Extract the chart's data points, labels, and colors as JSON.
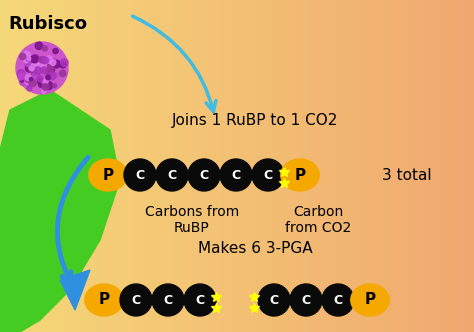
{
  "bg_color_left": "#f5d878",
  "bg_color_right": "#f0a870",
  "title": "Rubisco",
  "arrow_color": "#40bce0",
  "text_join": "Joins 1 RuBP to 1 CO2",
  "text_3total": "3 total",
  "text_carbons_rubp": "Carbons from\nRuBP",
  "text_carbon_co2": "Carbon\nfrom CO2",
  "text_makes": "Makes 6 3-PGA",
  "orange_color": "#f5a800",
  "black_color": "#0a0a0a",
  "star_color": "#ffff00",
  "green_color": "#44cc22",
  "blue_arrow_color": "#3090e0",
  "rubisco_color": "#cc55cc",
  "title_fontsize": 13,
  "text_fontsize": 11,
  "label_fontsize": 10
}
